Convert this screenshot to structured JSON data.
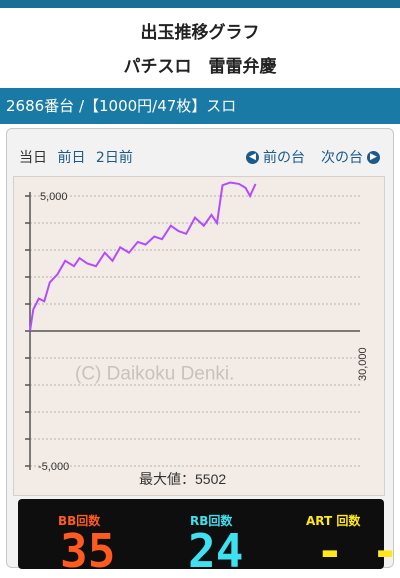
{
  "header": {
    "title_line1": "出玉推移グラフ",
    "title_line2": "パチスロ　雷雷弁慶"
  },
  "machine_bar": {
    "text": "2686番台 /【1000円/47枚】スロ"
  },
  "day_nav": {
    "today": "当日",
    "prev_day": "前日",
    "two_days": "2日前"
  },
  "machine_nav": {
    "prev": "前の台",
    "next": "次の台"
  },
  "chart_data": {
    "type": "line",
    "x_max_label": "30,000",
    "y_labels": [
      "5,000",
      "-5,000"
    ],
    "ylim": [
      -5000,
      5000
    ],
    "xlim": [
      0,
      30000
    ],
    "watermark": "(C) Daikoku Denki.",
    "max_label": "最大値：5502",
    "color": "#b24dff",
    "x": [
      0,
      300,
      800,
      1300,
      1800,
      2500,
      3200,
      4000,
      4500,
      5200,
      6000,
      6800,
      7500,
      8200,
      9000,
      9800,
      10500,
      11300,
      12000,
      12800,
      13500,
      14200,
      15000,
      15800,
      16500,
      17000,
      17500,
      18200,
      19000,
      19600,
      20000,
      20500
    ],
    "y": [
      0,
      800,
      1200,
      1100,
      1800,
      2100,
      2600,
      2400,
      2700,
      2500,
      2400,
      2900,
      2600,
      3100,
      2900,
      3300,
      3200,
      3500,
      3400,
      3900,
      3700,
      3600,
      4200,
      3900,
      4300,
      4000,
      5400,
      5500,
      5450,
      5300,
      5000,
      5450
    ]
  },
  "counters": {
    "bb_label": "BB回数",
    "bb_value": "35",
    "bb_color": "#ff5a1f",
    "rb_label": "RB回数",
    "rb_value": "24",
    "rb_color": "#3fe0f0",
    "art_label": "ART 回数",
    "art_value": "- -",
    "art_color": "#ffe81a"
  }
}
